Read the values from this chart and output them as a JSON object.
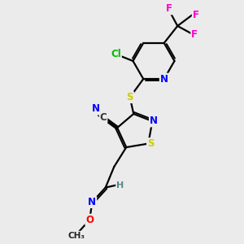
{
  "bg_color": "#ebebeb",
  "bond_color": "#000000",
  "atom_colors": {
    "N": "#0000ff",
    "S": "#cccc00",
    "O": "#ff0000",
    "Cl": "#00bb00",
    "F": "#ff00cc",
    "H": "#558888",
    "CN_label": "#0000ff"
  },
  "linewidth": 1.6,
  "fig_w": 3.0,
  "fig_h": 3.0,
  "dpi": 100
}
